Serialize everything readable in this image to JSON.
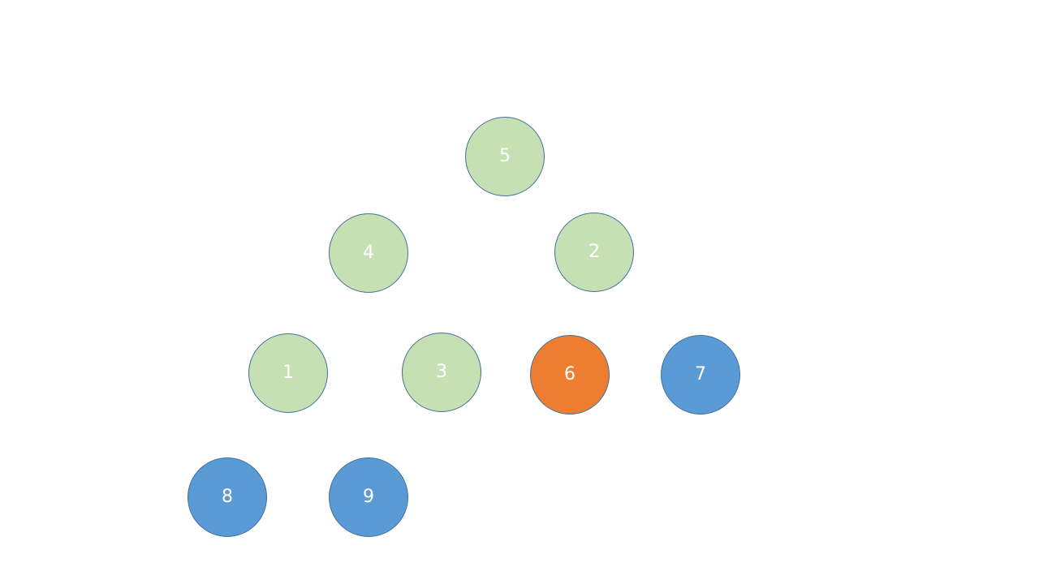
{
  "colors": {
    "green": "#c6e0b4",
    "orange": "#ed7d31",
    "blue": "#5b9bd5",
    "outline": "#41719c",
    "label": "#ffffff"
  },
  "nodes": {
    "n5": {
      "label": "5",
      "color": "green"
    },
    "n4": {
      "label": "4",
      "color": "green"
    },
    "n2": {
      "label": "2",
      "color": "green"
    },
    "n1": {
      "label": "1",
      "color": "green"
    },
    "n3": {
      "label": "3",
      "color": "green"
    },
    "n6": {
      "label": "6",
      "color": "orange"
    },
    "n7": {
      "label": "7",
      "color": "blue"
    },
    "n8": {
      "label": "8",
      "color": "blue"
    },
    "n9": {
      "label": "9",
      "color": "blue"
    }
  }
}
